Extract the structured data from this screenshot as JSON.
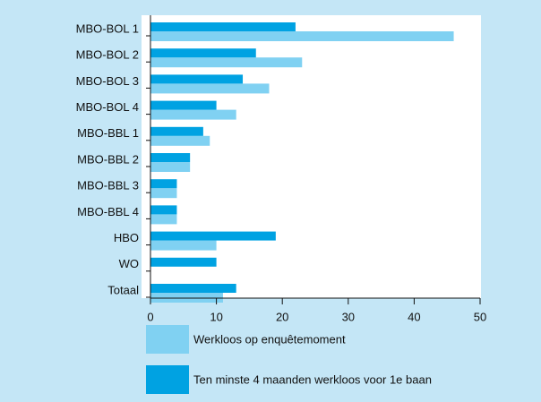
{
  "chart_data": {
    "type": "hbar",
    "categories": [
      "MBO-BOL 1",
      "MBO-BOL 2",
      "MBO-BOL 3",
      "MBO-BOL 4",
      "MBO-BBL 1",
      "MBO-BBL 2",
      "MBO-BBL 3",
      "MBO-BBL 4",
      "HBO",
      "WO",
      "Totaal"
    ],
    "series": [
      {
        "name": "Werkloos op enquêtemoment",
        "color": "#80d1f2",
        "values": [
          46,
          23,
          18,
          13,
          9,
          6,
          4,
          4,
          10,
          0,
          11
        ]
      },
      {
        "name": "Ten minste 4 maanden werkloos voor 1e baan",
        "color": "#00a2e2",
        "values": [
          22,
          16,
          14,
          10,
          8,
          6,
          4,
          4,
          19,
          10,
          13
        ]
      }
    ],
    "xlim": [
      0,
      50
    ],
    "xticks": [
      0,
      10,
      20,
      30,
      40,
      50
    ]
  }
}
